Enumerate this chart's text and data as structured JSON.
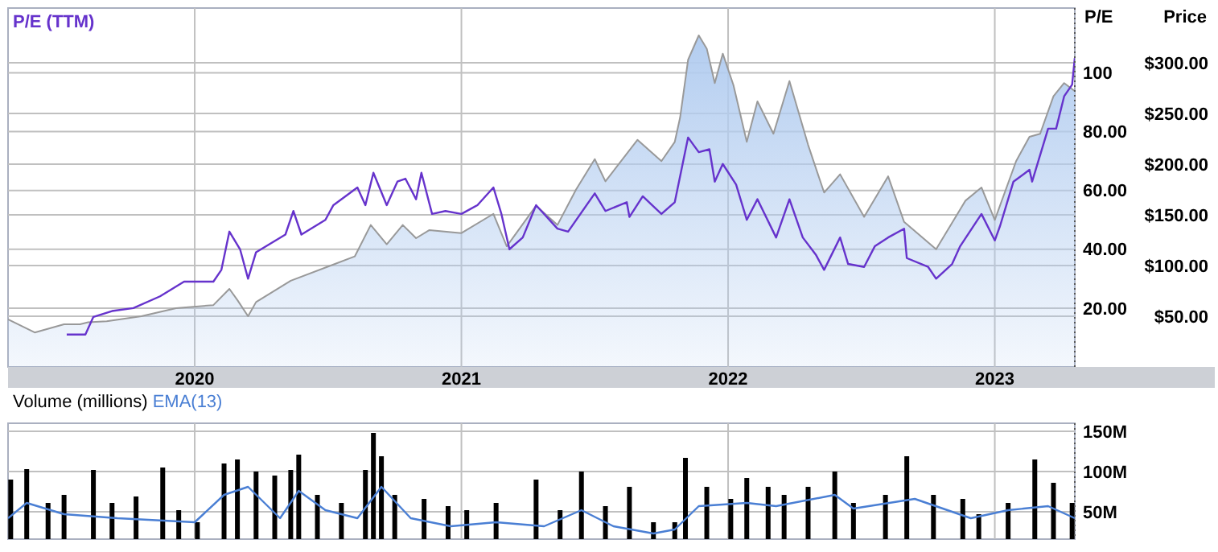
{
  "chart_data": [
    {
      "type": "line",
      "ylabel": "P/E",
      "y2label": "Price",
      "xlim": [
        2019.3,
        2023.3
      ],
      "xticks": [
        2020,
        2021,
        2022,
        2023
      ],
      "ylim": [
        0,
        122
      ],
      "yticks": [
        {
          "value": 20,
          "label": "20.00"
        },
        {
          "value": 40,
          "label": "40.00"
        },
        {
          "value": 60,
          "label": "60.00"
        },
        {
          "value": 80,
          "label": "80.00"
        },
        100
      ],
      "y2lim": [
        0,
        354
      ],
      "y2ticks": [
        {
          "value": 50,
          "label": "$50.00"
        },
        {
          "value": 100,
          "label": "$100.00"
        },
        {
          "value": 150,
          "label": "$150.00"
        },
        {
          "value": 200,
          "label": "$200.00"
        },
        {
          "value": 250,
          "label": "$250.00"
        },
        {
          "value": 300,
          "label": "$300.00"
        }
      ],
      "grid": true,
      "legend": "top left",
      "series": [
        {
          "type": "area",
          "axis": "y2",
          "color": "#b3cdf0",
          "x": [
            2019.3,
            2019.4,
            2019.51,
            2019.57,
            2019.6,
            2019.67,
            2019.8,
            2019.93,
            2020.07,
            2020.13,
            2020.16,
            2020.2,
            2020.23,
            2020.36,
            2020.52,
            2020.6,
            2020.66,
            2020.72,
            2020.78,
            2020.83,
            2020.88,
            2021.0,
            2021.12,
            2021.17,
            2021.28,
            2021.36,
            2021.43,
            2021.5,
            2021.54,
            2021.66,
            2021.75,
            2021.8,
            2021.82,
            2021.85,
            2021.89,
            2021.92,
            2021.95,
            2021.98,
            2022.02,
            2022.07,
            2022.11,
            2022.17,
            2022.23,
            2022.3,
            2022.36,
            2022.42,
            2022.51,
            2022.6,
            2022.66,
            2022.78,
            2022.89,
            2022.95,
            2023.0,
            2023.08,
            2023.13,
            2023.17,
            2023.22,
            2023.26,
            2023.3
          ],
          "values": [
            47,
            34,
            42,
            42,
            44,
            45,
            50,
            58,
            61,
            77,
            66,
            50,
            64,
            85,
            101,
            109,
            140,
            121,
            140,
            127,
            135,
            132,
            151,
            119,
            159,
            140,
            175,
            205,
            183,
            224,
            203,
            222,
            246,
            303,
            327,
            314,
            280,
            309,
            278,
            222,
            262,
            230,
            282,
            219,
            172,
            190,
            148,
            188,
            143,
            116,
            164,
            177,
            145,
            203,
            227,
            230,
            267,
            280,
            272
          ]
        },
        {
          "axis": "y",
          "name": "P/E (TTM)",
          "color": "#6633cc",
          "x": [
            2019.52,
            2019.59,
            2019.62,
            2019.69,
            2019.77,
            2019.87,
            2019.96,
            2020.07,
            2020.1,
            2020.13,
            2020.17,
            2020.2,
            2020.23,
            2020.34,
            2020.37,
            2020.4,
            2020.49,
            2020.52,
            2020.61,
            2020.64,
            2020.67,
            2020.72,
            2020.76,
            2020.79,
            2020.83,
            2020.85,
            2020.89,
            2020.94,
            2021.0,
            2021.06,
            2021.12,
            2021.15,
            2021.18,
            2021.23,
            2021.28,
            2021.36,
            2021.4,
            2021.5,
            2021.54,
            2021.62,
            2021.63,
            2021.68,
            2021.75,
            2021.8,
            2021.85,
            2021.89,
            2021.93,
            2021.95,
            2021.98,
            2022.03,
            2022.07,
            2022.11,
            2022.18,
            2022.23,
            2022.28,
            2022.33,
            2022.36,
            2022.42,
            2022.45,
            2022.51,
            2022.55,
            2022.6,
            2022.66,
            2022.67,
            2022.75,
            2022.78,
            2022.84,
            2022.87,
            2022.95,
            2023.0,
            2023.02,
            2023.07,
            2023.13,
            2023.14,
            2023.2,
            2023.23,
            2023.26,
            2023.29,
            2023.3
          ],
          "values": [
            11,
            11,
            17,
            19,
            20,
            24,
            29,
            29,
            33,
            46,
            40,
            30,
            39,
            45,
            53,
            45,
            50,
            55,
            61,
            55,
            66,
            55,
            63,
            64,
            57,
            66,
            52,
            53,
            52,
            55,
            61,
            52,
            40,
            44,
            55,
            47,
            46,
            59,
            53,
            56,
            51,
            58,
            52,
            56,
            78,
            73,
            74,
            63,
            69,
            62,
            50,
            57,
            44,
            57,
            44,
            38,
            33,
            44,
            35,
            34,
            41,
            44,
            47,
            37,
            34,
            30,
            35,
            41,
            52,
            43,
            48,
            63,
            67,
            63,
            81,
            81,
            92,
            96,
            105
          ]
        }
      ]
    },
    {
      "type": "bar",
      "ylabel": "Volume (millions)",
      "xlim": [
        2019.3,
        2023.3
      ],
      "xticks": [
        2020,
        2021,
        2022,
        2023
      ],
      "ylim": [
        16,
        160
      ],
      "yticks": [
        {
          "value": 50,
          "label": "50M"
        },
        {
          "value": 100,
          "label": "100M"
        },
        {
          "value": 150,
          "label": "150M"
        }
      ],
      "tick_labels": "y",
      "grid": true,
      "legend": "top left",
      "series": [
        {
          "color": "#000000",
          "x": [
            2019.31,
            2019.37,
            2019.45,
            2019.51,
            2019.62,
            2019.69,
            2019.78,
            2019.88,
            2019.94,
            2020.01,
            2020.11,
            2020.16,
            2020.23,
            2020.3,
            2020.36,
            2020.39,
            2020.46,
            2020.55,
            2020.64,
            2020.67,
            2020.7,
            2020.75,
            2020.86,
            2020.95,
            2021.02,
            2021.13,
            2021.28,
            2021.37,
            2021.45,
            2021.54,
            2021.63,
            2021.72,
            2021.8,
            2021.84,
            2021.92,
            2022.01,
            2022.07,
            2022.15,
            2022.21,
            2022.3,
            2022.4,
            2022.47,
            2022.59,
            2022.67,
            2022.77,
            2022.88,
            2022.94,
            2023.05,
            2023.15,
            2023.22,
            2023.29
          ],
          "values": [
            90,
            103,
            61,
            71,
            102,
            61,
            69,
            105,
            52,
            37,
            110,
            115,
            100,
            95,
            102,
            121,
            71,
            61,
            102,
            148,
            119,
            71,
            66,
            57,
            52,
            61,
            90,
            52,
            100,
            57,
            81,
            37,
            37,
            117,
            81,
            66,
            92,
            81,
            71,
            81,
            100,
            61,
            71,
            119,
            71,
            66,
            47,
            61,
            115,
            86,
            61
          ]
        },
        {
          "type": "line",
          "name": "EMA(13)",
          "color": "#4a7fd4",
          "x": [
            2019.3,
            2019.37,
            2019.51,
            2019.71,
            2020.0,
            2020.11,
            2020.2,
            2020.32,
            2020.39,
            2020.49,
            2020.61,
            2020.7,
            2020.81,
            2020.96,
            2021.13,
            2021.31,
            2021.45,
            2021.57,
            2021.72,
            2021.8,
            2021.89,
            2022.07,
            2022.18,
            2022.4,
            2022.47,
            2022.7,
            2022.91,
            2023.05,
            2023.2,
            2023.3
          ],
          "values": [
            42,
            61,
            47,
            42,
            37,
            71,
            81,
            42,
            76,
            52,
            42,
            81,
            42,
            32,
            37,
            32,
            52,
            32,
            23,
            28,
            57,
            61,
            57,
            71,
            54,
            66,
            42,
            52,
            57,
            42
          ]
        }
      ]
    }
  ]
}
